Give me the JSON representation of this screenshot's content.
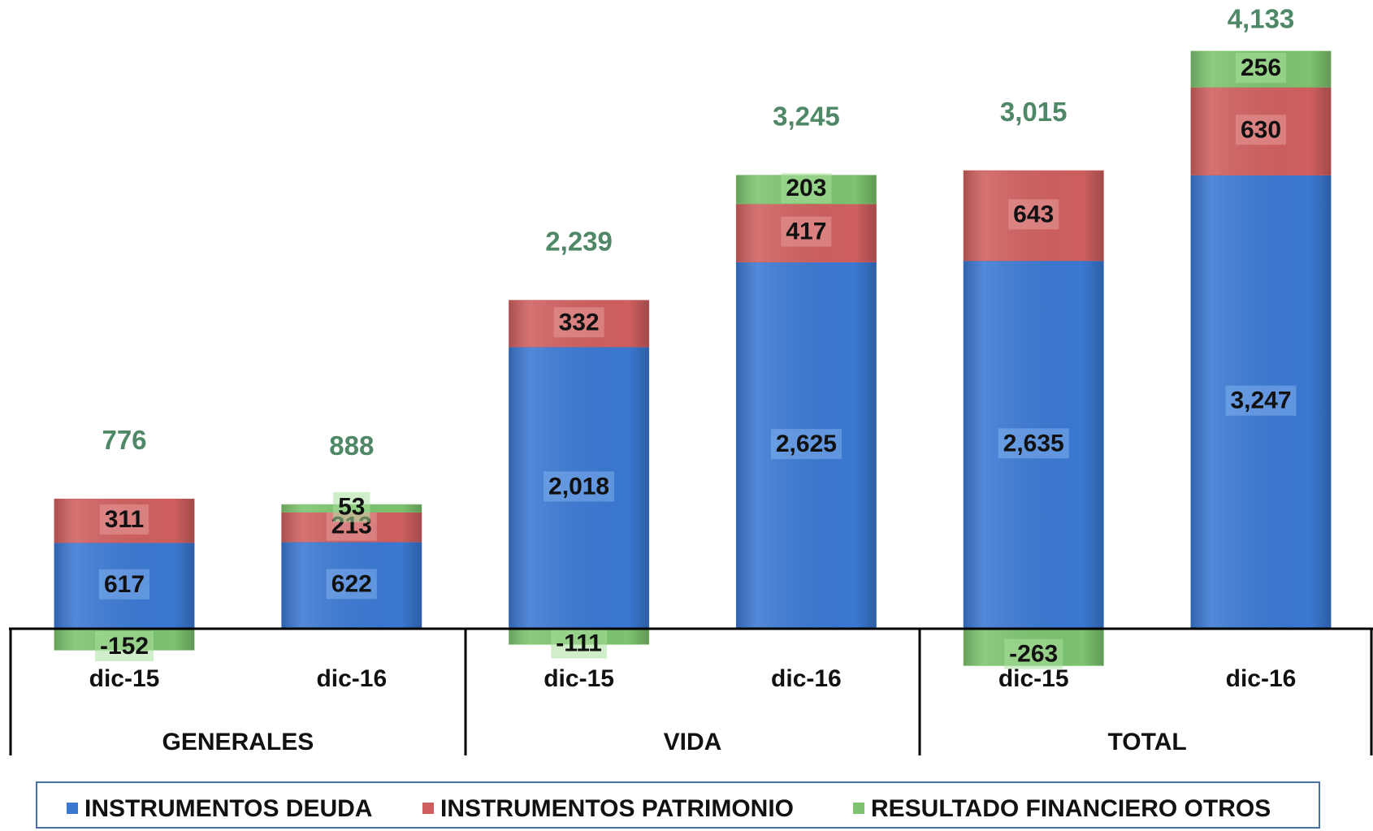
{
  "chart_data": {
    "type": "stacked-bar",
    "categories": [
      "dic-15",
      "dic-16",
      "dic-15",
      "dic-16",
      "dic-15",
      "dic-16"
    ],
    "groups": [
      "GENERALES",
      "VIDA",
      "TOTAL"
    ],
    "series": [
      {
        "name": "INSTRUMENTOS DEUDA",
        "color": "#3b78d2",
        "values": [
          617,
          622,
          2018,
          2625,
          2635,
          3247
        ],
        "value_labels": [
          "617",
          "622",
          "2,018",
          "2,625",
          "2,635",
          "3,247"
        ]
      },
      {
        "name": "INSTRUMENTOS PATRIMONIO",
        "color": "#cf5f5f",
        "values": [
          311,
          213,
          332,
          417,
          643,
          630
        ]
      },
      {
        "name": "RESULTADO FINANCIERO OTROS",
        "color": "#7dc36f",
        "values": [
          -152,
          53,
          -111,
          203,
          -263,
          256
        ]
      }
    ],
    "totals": [
      776,
      888,
      2239,
      3245,
      3015,
      4133
    ],
    "total_labels": [
      "776",
      "888",
      "2,239",
      "3,245",
      "3,015",
      "4,133"
    ],
    "legend": "bottom"
  }
}
